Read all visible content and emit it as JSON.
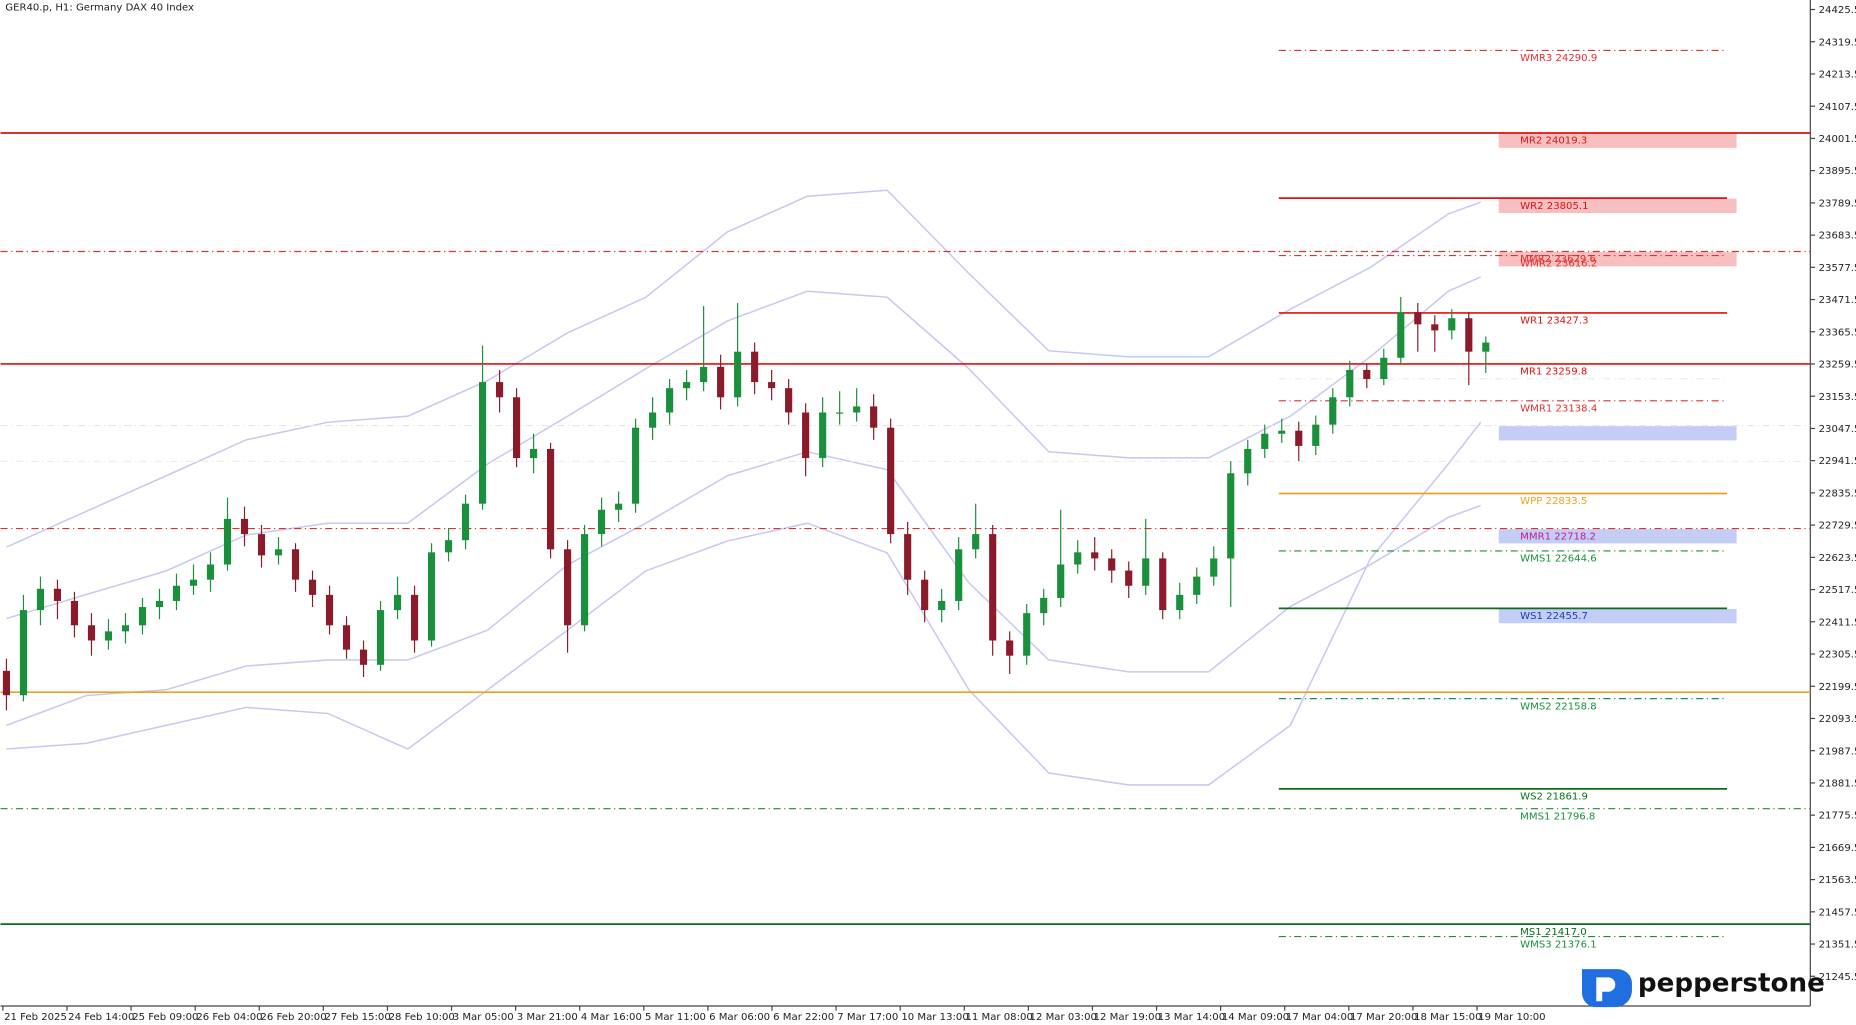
{
  "chart_data": {
    "type": "candlestick",
    "title": "GER40.p, H1:  Germany DAX 40 Index",
    "logo": "pepperstone",
    "ylim": [
      21147.8,
      24456.8
    ],
    "yticks": [
      24425.5,
      24319.5,
      24213.5,
      24107.5,
      24001.5,
      23895.5,
      23789.5,
      23683.5,
      23577.5,
      23471.5,
      23365.5,
      23259.5,
      23153.5,
      23047.5,
      22941.5,
      22835.5,
      22729.5,
      22623.5,
      22517.5,
      22411.5,
      22305.5,
      22199.5,
      22093.5,
      21987.5,
      21881.5,
      21775.5,
      21669.5,
      21563.5,
      21457.5,
      21351.5,
      21245.5
    ],
    "xlabels": [
      "21 Feb 2025",
      "24 Feb 14:00",
      "25 Feb 09:00",
      "26 Feb 04:00",
      "26 Feb 20:00",
      "27 Feb 15:00",
      "28 Feb 10:00",
      "3 Mar 05:00",
      "3 Mar 21:00",
      "4 Mar 16:00",
      "5 Mar 11:00",
      "6 Mar 06:00",
      "6 Mar 22:00",
      "7 Mar 17:00",
      "10 Mar 13:00",
      "11 Mar 08:00",
      "12 Mar 03:00",
      "12 Mar 19:00",
      "13 Mar 14:00",
      "14 Mar 09:00",
      "17 Mar 04:00",
      "17 Mar 20:00",
      "18 Mar 15:00",
      "19 Mar 10:00"
    ],
    "up_color": "#1a8f3c",
    "down_color": "#8b1a2a",
    "candles": [
      [
        22250,
        22290,
        22120,
        22170
      ],
      [
        22170,
        22500,
        22150,
        22450
      ],
      [
        22450,
        22560,
        22400,
        22520
      ],
      [
        22520,
        22550,
        22420,
        22480
      ],
      [
        22480,
        22510,
        22360,
        22400
      ],
      [
        22400,
        22440,
        22300,
        22350
      ],
      [
        22350,
        22420,
        22320,
        22380
      ],
      [
        22380,
        22440,
        22340,
        22400
      ],
      [
        22400,
        22490,
        22370,
        22460
      ],
      [
        22460,
        22520,
        22420,
        22480
      ],
      [
        22480,
        22570,
        22450,
        22530
      ],
      [
        22530,
        22600,
        22500,
        22550
      ],
      [
        22550,
        22640,
        22510,
        22600
      ],
      [
        22600,
        22820,
        22580,
        22750
      ],
      [
        22750,
        22790,
        22660,
        22700
      ],
      [
        22700,
        22730,
        22590,
        22630
      ],
      [
        22630,
        22690,
        22600,
        22650
      ],
      [
        22650,
        22670,
        22510,
        22550
      ],
      [
        22550,
        22580,
        22460,
        22500
      ],
      [
        22500,
        22530,
        22370,
        22400
      ],
      [
        22400,
        22430,
        22290,
        22320
      ],
      [
        22320,
        22350,
        22230,
        22270
      ],
      [
        22270,
        22480,
        22250,
        22450
      ],
      [
        22450,
        22560,
        22420,
        22500
      ],
      [
        22500,
        22530,
        22310,
        22350
      ],
      [
        22350,
        22670,
        22330,
        22640
      ],
      [
        22640,
        22720,
        22610,
        22680
      ],
      [
        22680,
        22830,
        22650,
        22800
      ],
      [
        22800,
        23320,
        22780,
        23200
      ],
      [
        23200,
        23240,
        23100,
        23150
      ],
      [
        23150,
        23180,
        22920,
        22950
      ],
      [
        22950,
        23030,
        22900,
        22980
      ],
      [
        22980,
        23000,
        22620,
        22650
      ],
      [
        22650,
        22680,
        22310,
        22400
      ],
      [
        22400,
        22730,
        22380,
        22700
      ],
      [
        22700,
        22820,
        22660,
        22780
      ],
      [
        22780,
        22840,
        22740,
        22800
      ],
      [
        22800,
        23080,
        22770,
        23050
      ],
      [
        23050,
        23150,
        23010,
        23100
      ],
      [
        23100,
        23210,
        23060,
        23180
      ],
      [
        23180,
        23240,
        23140,
        23200
      ],
      [
        23200,
        23450,
        23170,
        23250
      ],
      [
        23250,
        23290,
        23110,
        23150
      ],
      [
        23150,
        23460,
        23120,
        23300
      ],
      [
        23300,
        23330,
        23160,
        23200
      ],
      [
        23200,
        23240,
        23140,
        23180
      ],
      [
        23180,
        23210,
        23060,
        23100
      ],
      [
        23100,
        23130,
        22890,
        22950
      ],
      [
        22950,
        23150,
        22920,
        23100
      ],
      [
        23100,
        23170,
        23060,
        23100
      ],
      [
        23100,
        23180,
        23070,
        23120
      ],
      [
        23120,
        23160,
        23010,
        23050
      ],
      [
        23050,
        23080,
        22670,
        22700
      ],
      [
        22700,
        22740,
        22500,
        22550
      ],
      [
        22550,
        22580,
        22410,
        22450
      ],
      [
        22450,
        22520,
        22410,
        22480
      ],
      [
        22480,
        22690,
        22450,
        22650
      ],
      [
        22650,
        22800,
        22620,
        22700
      ],
      [
        22700,
        22730,
        22300,
        22350
      ],
      [
        22350,
        22380,
        22240,
        22300
      ],
      [
        22300,
        22470,
        22270,
        22440
      ],
      [
        22440,
        22520,
        22400,
        22490
      ],
      [
        22490,
        22780,
        22460,
        22600
      ],
      [
        22600,
        22680,
        22570,
        22640
      ],
      [
        22640,
        22690,
        22580,
        22620
      ],
      [
        22620,
        22650,
        22540,
        22580
      ],
      [
        22580,
        22610,
        22490,
        22530
      ],
      [
        22530,
        22750,
        22500,
        22620
      ],
      [
        22620,
        22640,
        22420,
        22450
      ],
      [
        22450,
        22540,
        22420,
        22500
      ],
      [
        22500,
        22590,
        22470,
        22560
      ],
      [
        22560,
        22660,
        22530,
        22620
      ],
      [
        22620,
        22940,
        22460,
        22900
      ],
      [
        22900,
        23010,
        22860,
        22980
      ],
      [
        22980,
        23060,
        22950,
        23030
      ],
      [
        23030,
        23080,
        23000,
        23040
      ],
      [
        23040,
        23070,
        22940,
        22990
      ],
      [
        22990,
        23090,
        22960,
        23060
      ],
      [
        23060,
        23180,
        23030,
        23150
      ],
      [
        23150,
        23270,
        23120,
        23240
      ],
      [
        23240,
        23260,
        23180,
        23210
      ],
      [
        23210,
        23310,
        23190,
        23280
      ],
      [
        23280,
        23480,
        23260,
        23430
      ],
      [
        23430,
        23460,
        23300,
        23390
      ],
      [
        23390,
        23420,
        23300,
        23370
      ],
      [
        23370,
        23440,
        23340,
        23410
      ],
      [
        23410,
        23430,
        23190,
        23300
      ],
      [
        23300,
        23350,
        23230,
        23330
      ]
    ],
    "bands": {
      "color": "#c9c9f0",
      "x": [
        0,
        4.7,
        9.4,
        14.1,
        18.9,
        23.6,
        28.3,
        33,
        37.6,
        42.4,
        47.1,
        51.8,
        56.6,
        61.3,
        66,
        70.7,
        75.5,
        80.2,
        84.8,
        86.7
      ],
      "series": [
        [
          22657,
          22775,
          22892,
          23010,
          23068,
          23088,
          23205,
          23362,
          23479,
          23694,
          23811,
          23831,
          23557,
          23303,
          23283,
          23283,
          23440,
          23577,
          23753,
          23792
        ],
        [
          22422,
          22501,
          22579,
          22697,
          22736,
          22736,
          22931,
          23088,
          23244,
          23401,
          23499,
          23479,
          23244,
          22971,
          22951,
          22951,
          23088,
          23283,
          23499,
          23546
        ],
        [
          22071,
          22169,
          22188,
          22266,
          22286,
          22286,
          22384,
          22599,
          22736,
          22892,
          22971,
          22912,
          22540,
          22286,
          22247,
          22247,
          22462,
          22599,
          22755,
          22794
        ],
        [
          21993,
          22012,
          22071,
          22130,
          22110,
          21993,
          22188,
          22384,
          22579,
          22677,
          22736,
          22638,
          22188,
          21914,
          21875,
          21875,
          22071,
          22618,
          22931,
          23068
        ]
      ]
    },
    "levels": [
      {
        "label": "WMR3 24290.9",
        "value": 24290.9,
        "color": "#e03030",
        "style": "dashdot",
        "span": "week"
      },
      {
        "label": "MR2 24019.3",
        "value": 24019.3,
        "color": "#e01010",
        "style": "solid",
        "span": "full",
        "highlight": "#f6c0c0"
      },
      {
        "label": "WR2 23805.1",
        "value": 23805.1,
        "color": "#e01010",
        "style": "solid",
        "span": "week",
        "highlight": "#f6c0c0"
      },
      {
        "label": "MMR2 23629.6",
        "value": 23629.6,
        "color": "#e03030",
        "style": "dashdot",
        "span": "full",
        "highlight": "#f6c0c0"
      },
      {
        "label": "WMR2 23616.2",
        "value": 23616.2,
        "color": "#e03030",
        "style": "dashdot",
        "span": "week"
      },
      {
        "label": "WR1 23427.3",
        "value": 23427.3,
        "color": "#e01010",
        "style": "solid",
        "span": "week"
      },
      {
        "label": "MR1 23259.8",
        "value": 23259.8,
        "color": "#e01010",
        "style": "solid",
        "span": "full"
      },
      {
        "value": 23211,
        "color": "#ececec",
        "style": "dashdot",
        "span": "week"
      },
      {
        "label": "WMR1 23138.4",
        "value": 23138.4,
        "color": "#e03030",
        "style": "dashdot",
        "span": "week"
      },
      {
        "value": 23057,
        "color": "#e6e6e6",
        "style": "dashdot",
        "span": "full",
        "highlight": "#c3cdf6"
      },
      {
        "value": 22939,
        "color": "#ececec",
        "style": "dashdot",
        "span": "full"
      },
      {
        "label": "WPP 22833.5",
        "value": 22833.5,
        "color": "#f0a020",
        "style": "solid",
        "span": "week"
      },
      {
        "label": "MMR1 22718.2",
        "value": 22718.2,
        "color": "#e03030",
        "style": "dashdot",
        "span": "full",
        "highlight": "#c3cdf6",
        "text_color": "#c0208a"
      },
      {
        "label": "WMS1 22644.6",
        "value": 22644.6,
        "color": "#1a8f3c",
        "style": "dashdot",
        "span": "week"
      },
      {
        "label": "WS1 22455.7",
        "value": 22455.7,
        "color": "#0a6e1a",
        "style": "solid",
        "span": "week",
        "highlight": "#c3cdf6",
        "text_color": "#1840c0"
      },
      {
        "value": 22180,
        "color": "#f0a020",
        "style": "solid",
        "span": "full"
      },
      {
        "label": "WMS2 22158.8",
        "value": 22158.8,
        "color": "#1a8f3c",
        "style": "dashdot",
        "span": "week"
      },
      {
        "label": "WS2 21861.9",
        "value": 21861.9,
        "color": "#0a6e1a",
        "style": "solid",
        "span": "week"
      },
      {
        "label": "MMS1 21796.8",
        "value": 21796.8,
        "color": "#1a8f3c",
        "style": "dashdot",
        "span": "full"
      },
      {
        "label": "MS1 21417.0",
        "value": 21417.0,
        "color": "#0a6e1a",
        "style": "solid",
        "span": "full"
      },
      {
        "label": "WMS3 21376.1",
        "value": 21376.1,
        "color": "#1a8f3c",
        "style": "dashdot",
        "span": "week"
      }
    ]
  }
}
